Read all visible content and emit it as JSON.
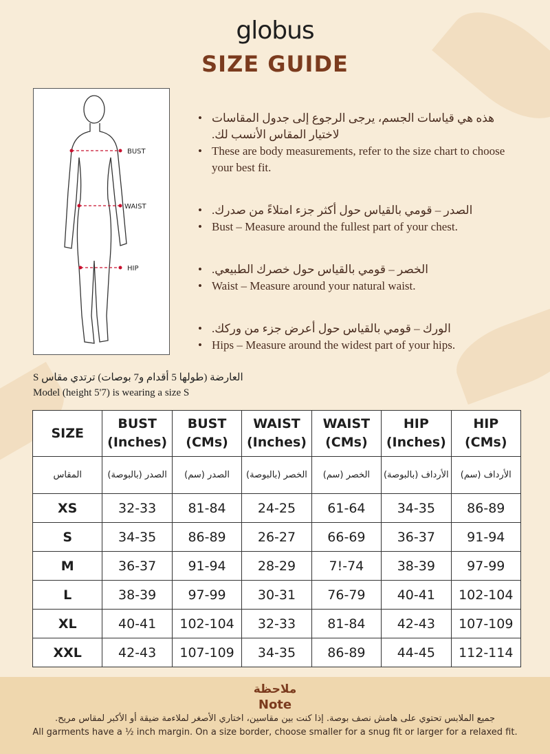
{
  "brand": "globus",
  "title": "SIZE GUIDE",
  "figure_labels": {
    "bust": "BUST",
    "waist": "WAIST",
    "hip": "HIP"
  },
  "bullets": [
    {
      "ar": "هذه هي قياسات الجسم، يرجى الرجوع إلى جدول المقاسات لاختيار المقاس الأنسب لك.",
      "en": "These are body measurements, refer to the size chart to choose your best fit."
    },
    {
      "ar": "الصدر – قومي بالقياس حول أكثر جزء امتلاءً من صدرك.",
      "en": "Bust – Measure around the fullest part of your chest."
    },
    {
      "ar": "الخصر – قومي بالقياس حول خصرك الطبيعي.",
      "en": "Waist – Measure around your natural waist."
    },
    {
      "ar": "الورك – قومي بالقياس حول أعرض جزء من وركك.",
      "en": "Hips – Measure around the widest part of your hips."
    }
  ],
  "model": {
    "ar": "العارضة (طولها 5 أقدام و7 بوصات) ترتدي مقاس S",
    "en": "Model (height 5'7) is wearing a size S"
  },
  "table": {
    "headers": [
      [
        "SIZE",
        ""
      ],
      [
        "BUST",
        "(Inches)"
      ],
      [
        "BUST",
        "(CMs)"
      ],
      [
        "WAIST",
        "(Inches)"
      ],
      [
        "WAIST",
        "(CMs)"
      ],
      [
        "HIP",
        "(Inches)"
      ],
      [
        "HIP",
        "(CMs)"
      ]
    ],
    "headers_ar": [
      "المقاس",
      "الصدر (بالبوصة)",
      "الصدر (سم)",
      "الخصر (بالبوصة)",
      "الخصر (سم)",
      "الأرداف (بالبوصة)",
      "الأرداف (سم)"
    ],
    "rows": [
      [
        "XS",
        "32-33",
        "81-84",
        "24-25",
        "61-64",
        "34-35",
        "86-89"
      ],
      [
        "S",
        "34-35",
        "86-89",
        "26-27",
        "66-69",
        "36-37",
        "91-94"
      ],
      [
        "M",
        "36-37",
        "91-94",
        "28-29",
        "7!-74",
        "38-39",
        "97-99"
      ],
      [
        "L",
        "38-39",
        "97-99",
        "30-31",
        "76-79",
        "40-41",
        "102-104"
      ],
      [
        "XL",
        "40-41",
        "102-104",
        "32-33",
        "81-84",
        "42-43",
        "107-109"
      ],
      [
        "XXL",
        "42-43",
        "107-109",
        "34-35",
        "86-89",
        "44-45",
        "112-114"
      ]
    ]
  },
  "note": {
    "title_ar": "ملاحظة",
    "title_en": "Note",
    "text_ar": "جميع الملابس تحتوي على هامش نصف بوصة. إذا كنت بين مقاسين، اختاري الأصغر لملاءمة ضيقة أو الأكبر لمقاس مريح.",
    "text_en": "All garments have a ½ inch margin. On a size border, choose smaller for a snug fit or larger for a relaxed fit."
  },
  "colors": {
    "background": "#f8ecd8",
    "title": "#7b3b1e",
    "footer": "#efd7ae",
    "marker": "#c8102e"
  }
}
